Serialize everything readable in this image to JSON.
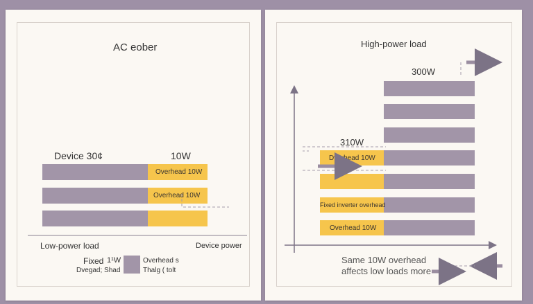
{
  "colors": {
    "background": "#9e90a6",
    "panel": "#fbf8f3",
    "bar_device": "#a295a8",
    "bar_overhead": "#f6c54c",
    "arrow": "#9a8da0",
    "axis": "#7c7386"
  },
  "left": {
    "title": "AC eober",
    "device_label": "Device 30¢",
    "overhead_value": "10W",
    "bars": [
      {
        "overhead_label": "Overhead 10W"
      },
      {
        "overhead_label": "Overhead 10W"
      },
      {
        "overhead_label": ""
      }
    ],
    "bottom_left": "Low-power load",
    "bottom_right": "Device power",
    "legend": {
      "fixed_line1": "Fixed",
      "fixed_value": "1¹W",
      "fixed_line2": "Dvegad; Shad",
      "overhead_line1": "Overhead s",
      "overhead_line2": "Thalg ( tolt"
    }
  },
  "right": {
    "title": "High-power load",
    "top_value": "300W",
    "left_value": "310W",
    "rows": [
      {
        "overhead_label": ""
      },
      {
        "overhead_label": ""
      },
      {
        "overhead_label": ""
      },
      {
        "overhead_label": "Dverhead 10W"
      },
      {
        "overhead_label": ""
      },
      {
        "overhead_label": "Fixed inverter overhead"
      },
      {
        "overhead_label": "Overhead 10W"
      }
    ],
    "caption_line1": "Same 10W overhead",
    "caption_line2": "affects low loads more"
  }
}
